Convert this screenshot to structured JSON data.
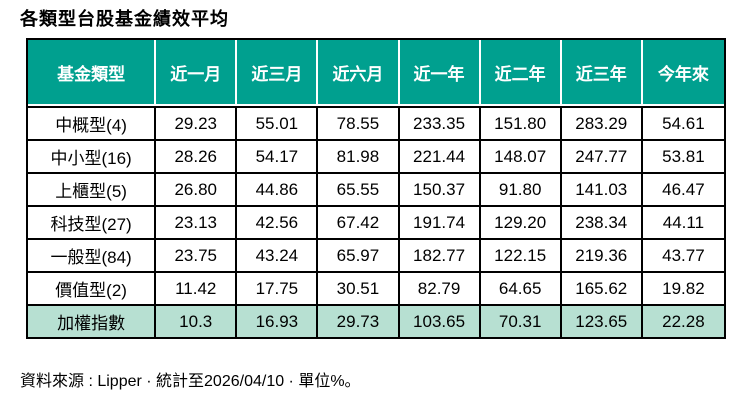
{
  "page": {
    "title": "各類型台股基金績效平均",
    "source_note": "資料來源 : Lipper · 統計至2026/04/10 · 單位%。"
  },
  "colors": {
    "header_bg": "#00A08F",
    "header_text": "#FFFFFF",
    "highlight_row_bg": "#B7E0D2",
    "border": "#000000",
    "background": "#FFFFFF"
  },
  "chart_data": {
    "type": "table",
    "title": "各類型台股基金績效平均",
    "unit": "%",
    "columns": [
      "基金類型",
      "近一月",
      "近三月",
      "近六月",
      "近一年",
      "近二年",
      "近三年",
      "今年來"
    ],
    "rows": [
      {
        "label": "中概型(4)",
        "values": [
          "29.23",
          "55.01",
          "78.55",
          "233.35",
          "151.80",
          "283.29",
          "54.61"
        ],
        "highlight": false
      },
      {
        "label": "中小型(16)",
        "values": [
          "28.26",
          "54.17",
          "81.98",
          "221.44",
          "148.07",
          "247.77",
          "53.81"
        ],
        "highlight": false
      },
      {
        "label": "上櫃型(5)",
        "values": [
          "26.80",
          "44.86",
          "65.55",
          "150.37",
          "91.80",
          "141.03",
          "46.47"
        ],
        "highlight": false
      },
      {
        "label": "科技型(27)",
        "values": [
          "23.13",
          "42.56",
          "67.42",
          "191.74",
          "129.20",
          "238.34",
          "44.11"
        ],
        "highlight": false
      },
      {
        "label": "一般型(84)",
        "values": [
          "23.75",
          "43.24",
          "65.97",
          "182.77",
          "122.15",
          "219.36",
          "43.77"
        ],
        "highlight": false
      },
      {
        "label": "價值型(2)",
        "values": [
          "11.42",
          "17.75",
          "30.51",
          "82.79",
          "64.65",
          "165.62",
          "19.82"
        ],
        "highlight": false
      },
      {
        "label": "加權指數",
        "values": [
          "10.3",
          "16.93",
          "29.73",
          "103.65",
          "70.31",
          "123.65",
          "22.28"
        ],
        "highlight": true
      }
    ],
    "source": "資料來源 : Lipper · 統計至2026/04/10 · 單位%。"
  }
}
